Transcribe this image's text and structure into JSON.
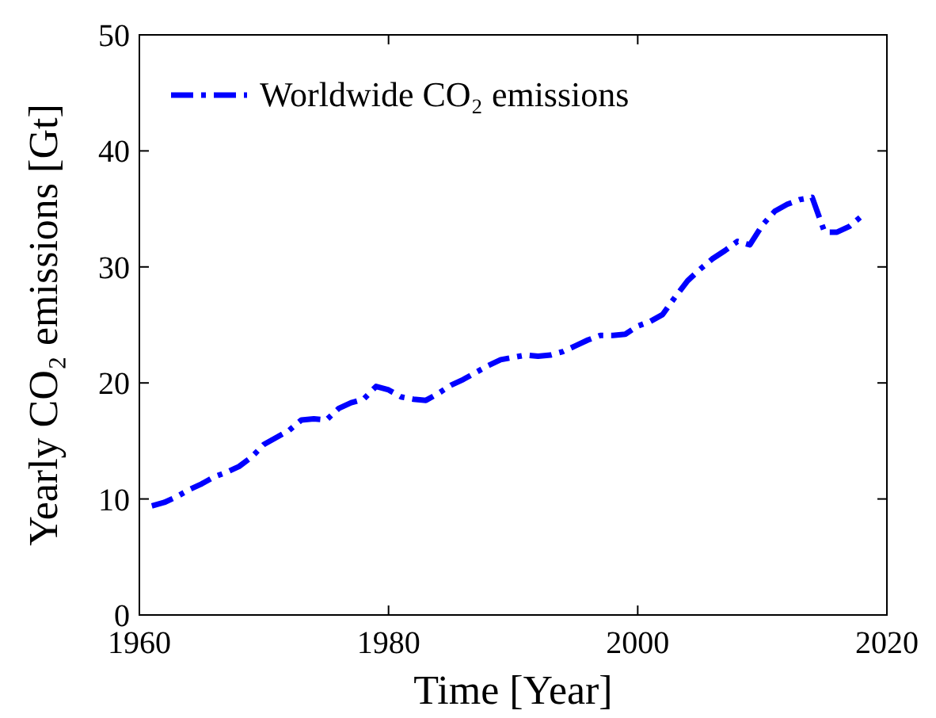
{
  "chart_data": {
    "type": "line",
    "xlabel": "Time [Year]",
    "ylabel": "Yearly CO₂ emissions [Gt]",
    "x": [
      1961,
      1962,
      1963,
      1964,
      1965,
      1966,
      1967,
      1968,
      1969,
      1970,
      1971,
      1972,
      1973,
      1974,
      1975,
      1976,
      1977,
      1978,
      1979,
      1980,
      1981,
      1982,
      1983,
      1984,
      1985,
      1986,
      1987,
      1988,
      1989,
      1990,
      1991,
      1992,
      1993,
      1994,
      1995,
      1996,
      1997,
      1998,
      1999,
      2000,
      2001,
      2002,
      2003,
      2004,
      2005,
      2006,
      2007,
      2008,
      2009,
      2010,
      2011,
      2012,
      2013,
      2014,
      2015,
      2016,
      2017,
      2018
    ],
    "series": [
      {
        "name": "Worldwide CO₂ emissions",
        "color": "#0000ff",
        "values": [
          9.4,
          9.7,
          10.2,
          10.8,
          11.3,
          11.9,
          12.3,
          12.8,
          13.6,
          14.7,
          15.3,
          15.9,
          16.8,
          16.9,
          16.8,
          17.8,
          18.3,
          18.6,
          19.7,
          19.4,
          18.8,
          18.6,
          18.5,
          19.1,
          19.8,
          20.3,
          20.9,
          21.5,
          22.0,
          22.2,
          22.4,
          22.3,
          22.4,
          22.7,
          23.2,
          23.7,
          24.1,
          24.1,
          24.2,
          24.9,
          25.3,
          25.9,
          27.4,
          28.8,
          29.8,
          30.7,
          31.4,
          32.2,
          31.9,
          33.6,
          34.8,
          35.4,
          35.8,
          36.0,
          33.0,
          33.0,
          33.5,
          34.4
        ]
      }
    ],
    "xlim": [
      1960,
      2020
    ],
    "xticks": [
      1960,
      1980,
      2000,
      2020
    ],
    "ylim": [
      0,
      50
    ],
    "yticks": [
      0,
      10,
      20,
      30,
      40,
      50
    ],
    "grid": false,
    "legend": "top left",
    "marker": "none",
    "line_style": "dashdot"
  }
}
